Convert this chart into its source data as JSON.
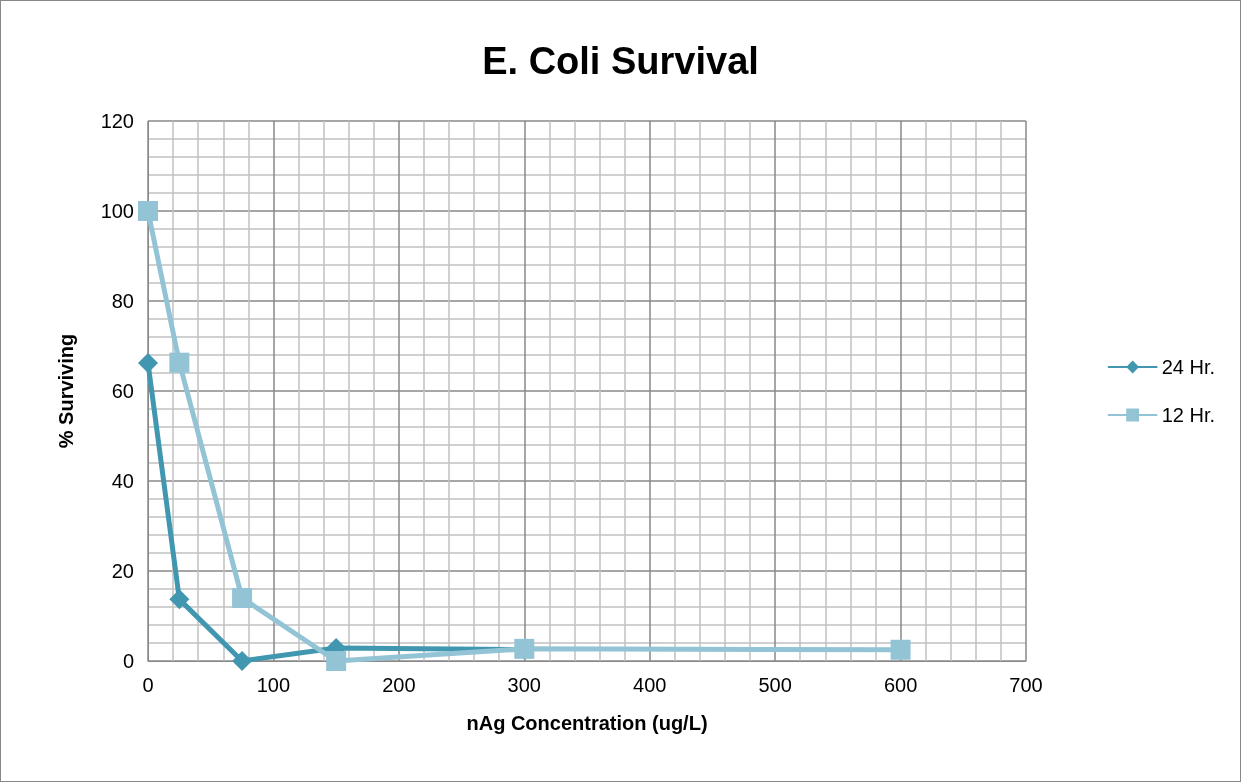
{
  "chart_data": {
    "type": "line",
    "title": "E. Coli Survival",
    "xlabel": "nAg Concentration (ug/L)",
    "ylabel": "% Surviving",
    "series": [
      {
        "name": "24 Hr.",
        "color": "#4197b0",
        "marker": "diamond",
        "x": [
          0,
          25,
          75,
          150,
          300
        ],
        "values": [
          66.2,
          13.7,
          0,
          2.9,
          2.5
        ]
      },
      {
        "name": "12 Hr.",
        "color": "#93c4d5",
        "marker": "square",
        "x": [
          0,
          25,
          75,
          150,
          300,
          600
        ],
        "values": [
          100,
          66.3,
          14,
          0,
          2.7,
          2.5
        ]
      }
    ],
    "xlim": [
      0,
      700
    ],
    "xticks": [
      0,
      100,
      200,
      300,
      400,
      500,
      600,
      700
    ],
    "ylim": [
      0,
      120
    ],
    "yticks": [
      0,
      20,
      40,
      60,
      80,
      100,
      120
    ],
    "grid": true,
    "legend": "right",
    "line_style": "solid"
  }
}
